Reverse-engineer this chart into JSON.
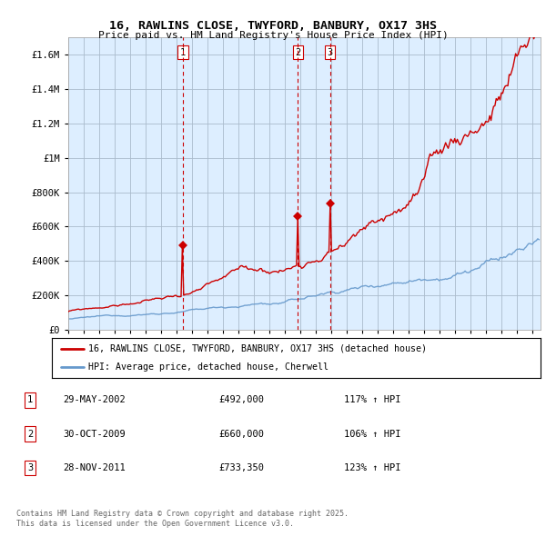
{
  "title": "16, RAWLINS CLOSE, TWYFORD, BANBURY, OX17 3HS",
  "subtitle": "Price paid vs. HM Land Registry's House Price Index (HPI)",
  "background_color": "#ffffff",
  "plot_bg_color": "#ddeeff",
  "grid_color": "#aabbcc",
  "red_color": "#cc0000",
  "blue_color": "#6699cc",
  "marker_line_color": "#cc0000",
  "ylim": [
    0,
    1700000
  ],
  "yticks": [
    0,
    200000,
    400000,
    600000,
    800000,
    1000000,
    1200000,
    1400000,
    1600000
  ],
  "ytick_labels": [
    "£0",
    "£200K",
    "£400K",
    "£600K",
    "£800K",
    "£1M",
    "£1.2M",
    "£1.4M",
    "£1.6M"
  ],
  "transactions": [
    {
      "id": 1,
      "date_str": "29-MAY-2002",
      "price": 492000,
      "pct": "117%",
      "date_num": 2002.41
    },
    {
      "id": 2,
      "date_str": "30-OCT-2009",
      "price": 660000,
      "pct": "106%",
      "date_num": 2009.83
    },
    {
      "id": 3,
      "date_str": "28-NOV-2011",
      "price": 733350,
      "pct": "123%",
      "date_num": 2011.91
    }
  ],
  "legend_line1": "16, RAWLINS CLOSE, TWYFORD, BANBURY, OX17 3HS (detached house)",
  "legend_line2": "HPI: Average price, detached house, Cherwell",
  "footer1": "Contains HM Land Registry data © Crown copyright and database right 2025.",
  "footer2": "This data is licensed under the Open Government Licence v3.0.",
  "xmin": 1995.0,
  "xmax": 2025.5
}
